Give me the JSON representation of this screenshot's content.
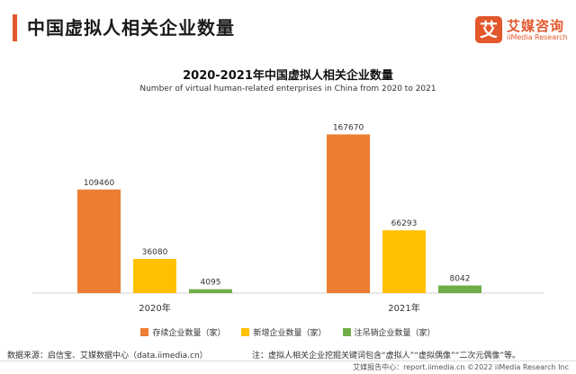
{
  "header": {
    "title": "中国虚拟人相关企业数量",
    "logo_badge": "艾",
    "logo_cn": "艾媒咨询",
    "logo_en": "iiMedia Research"
  },
  "colors": {
    "accent": "#e2572b",
    "series_existing": "#ed7d31",
    "series_new": "#ffc000",
    "series_cancelled": "#70ad47"
  },
  "chart_data": {
    "type": "bar",
    "title": "2020-2021年中国虚拟人相关企业数量",
    "subtitle": "Number of virtual human-related enterprises in China from 2020 to 2021",
    "categories": [
      "2020年",
      "2021年"
    ],
    "series": [
      {
        "name": "存续企业数量（家）",
        "values": [
          109460,
          167670
        ]
      },
      {
        "name": "新增企业数量（家）",
        "values": [
          36080,
          66293
        ]
      },
      {
        "name": "注吊销企业数量（家）",
        "values": [
          4095,
          8042
        ]
      }
    ],
    "ylim": [
      0,
      190000
    ],
    "grid": false,
    "legend": "bottom"
  },
  "footer": {
    "source": "数据来源：启信宝、艾媒数据中心（data.iimedia.cn）",
    "note": "注：虚拟人相关企业挖掘关键词包含“虚拟人”“虚拟偶像”“二次元偶像”等。",
    "copyright": "艾媒报告中心：report.iimedia.cn  ©2022 iiMedia Research Inc"
  }
}
